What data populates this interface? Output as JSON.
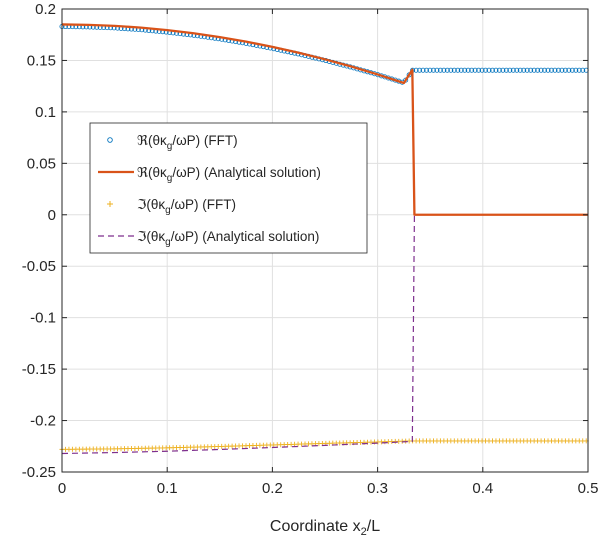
{
  "chart_data": {
    "type": "line",
    "title": "",
    "xlabel": "Coordinate x",
    "xlabel_subscript": "2",
    "xlabel_suffix": "/L",
    "ylabel": "",
    "xlim": [
      0,
      0.5
    ],
    "ylim": [
      -0.25,
      0.2
    ],
    "xticks": [
      0,
      0.1,
      0.2,
      0.3,
      0.4,
      0.5
    ],
    "xtick_labels": [
      "0",
      "0.1",
      "0.2",
      "0.3",
      "0.4",
      "0.5"
    ],
    "yticks": [
      0.2,
      0.15,
      0.1,
      0.05,
      0,
      -0.05,
      -0.1,
      -0.15,
      -0.2,
      -0.25
    ],
    "ytick_labels": [
      "0.2",
      "0.15",
      "0.1",
      "0.05",
      "0",
      "-0.05",
      "-0.1",
      "-0.15",
      "-0.2",
      "-0.25"
    ],
    "grid": true,
    "legend_position": "center-left",
    "interface_x": 0.333,
    "series": [
      {
        "key": "re_fft",
        "prefix": "ℜ(θκ",
        "sub": "g",
        "suffix": "/ωP) (FFT)",
        "marker": "circle",
        "color": "#0072BD",
        "x": [
          0,
          0.025,
          0.05,
          0.075,
          0.1,
          0.125,
          0.15,
          0.175,
          0.2,
          0.225,
          0.25,
          0.275,
          0.3,
          0.325,
          0.333,
          0.5
        ],
        "y": [
          0.183,
          0.1826,
          0.1816,
          0.1799,
          0.1775,
          0.1745,
          0.1709,
          0.1666,
          0.1617,
          0.1562,
          0.1501,
          0.1434,
          0.1362,
          0.1283,
          0.1405,
          0.1405
        ]
      },
      {
        "key": "re_an",
        "prefix": "ℜ(θκ",
        "sub": "g",
        "suffix": "/ωP) (Analytical solution)",
        "line": "solid",
        "color": "#D95319",
        "x": [
          0,
          0.025,
          0.05,
          0.075,
          0.1,
          0.125,
          0.15,
          0.175,
          0.2,
          0.225,
          0.25,
          0.275,
          0.3,
          0.325,
          0.333,
          0.335,
          0.5
        ],
        "y": [
          0.185,
          0.1846,
          0.1836,
          0.1819,
          0.1795,
          0.1764,
          0.1727,
          0.1683,
          0.1632,
          0.1575,
          0.1511,
          0.1441,
          0.1364,
          0.1281,
          0.141,
          0.0,
          0.0
        ]
      },
      {
        "key": "im_fft",
        "prefix": "ℑ(θκ",
        "sub": "g",
        "suffix": "/ωP) (FFT)",
        "marker": "plus",
        "color": "#EDB120",
        "x": [
          0,
          0.05,
          0.1,
          0.15,
          0.2,
          0.25,
          0.3,
          0.333,
          0.5
        ],
        "y": [
          -0.228,
          -0.2275,
          -0.2265,
          -0.2252,
          -0.2237,
          -0.2222,
          -0.2208,
          -0.2198,
          -0.2198
        ]
      },
      {
        "key": "im_an",
        "prefix": "ℑ(θκ",
        "sub": "g",
        "suffix": "/ωP) (Analytical solution)",
        "line": "dashed",
        "color": "#7E2F8E",
        "x": [
          0,
          0.05,
          0.1,
          0.15,
          0.2,
          0.25,
          0.3,
          0.333,
          0.335,
          0.5
        ],
        "y": [
          -0.232,
          -0.2311,
          -0.2298,
          -0.2281,
          -0.2262,
          -0.2241,
          -0.2219,
          -0.2203,
          0.0,
          0.0
        ]
      }
    ]
  }
}
